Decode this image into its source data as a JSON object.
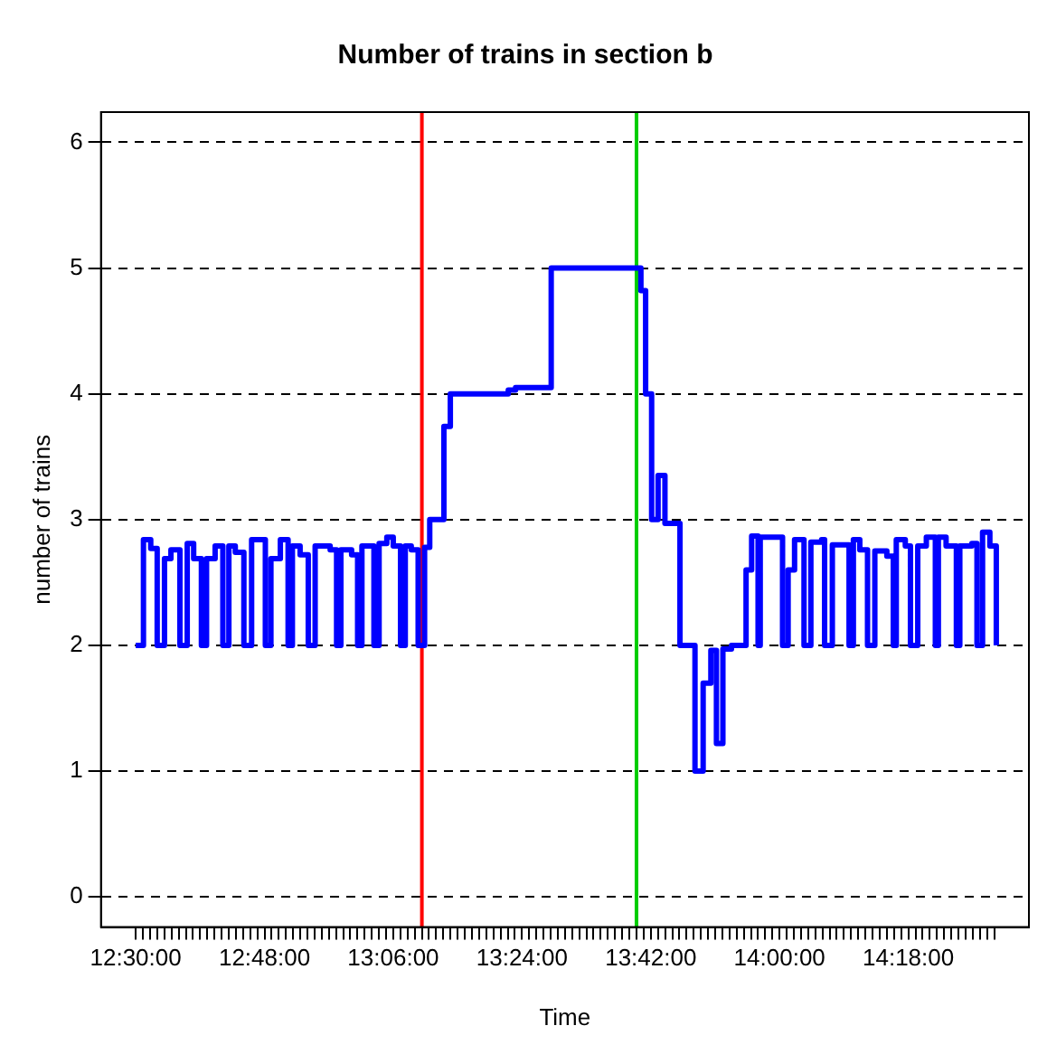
{
  "chart_data": {
    "type": "step",
    "title": "Number of trains in section b",
    "xlabel": "Time",
    "ylabel": "number of trains",
    "xlim": [
      12.419,
      14.581
    ],
    "ylim": [
      -0.24,
      6.24
    ],
    "yticks": [
      0,
      1,
      2,
      3,
      4,
      5,
      6
    ],
    "xticks": [
      {
        "value": 12.5,
        "label": "12:30:00"
      },
      {
        "value": 12.5167,
        "label": null
      },
      {
        "value": 12.5333,
        "label": null
      },
      {
        "value": 12.55,
        "label": null
      },
      {
        "value": 12.5667,
        "label": null
      },
      {
        "value": 12.5833,
        "label": null
      },
      {
        "value": 12.6,
        "label": null
      },
      {
        "value": 12.6167,
        "label": null
      },
      {
        "value": 12.6333,
        "label": null
      },
      {
        "value": 12.65,
        "label": null
      },
      {
        "value": 12.6667,
        "label": null
      },
      {
        "value": 12.6833,
        "label": null
      },
      {
        "value": 12.7,
        "label": null
      },
      {
        "value": 12.7167,
        "label": null
      },
      {
        "value": 12.7333,
        "label": null
      },
      {
        "value": 12.75,
        "label": null
      },
      {
        "value": 12.7667,
        "label": null
      },
      {
        "value": 12.7833,
        "label": null
      },
      {
        "value": 12.8,
        "label": "12:48:00"
      },
      {
        "value": 12.8167,
        "label": null
      },
      {
        "value": 12.8333,
        "label": null
      },
      {
        "value": 12.85,
        "label": null
      },
      {
        "value": 12.8667,
        "label": null
      },
      {
        "value": 12.8833,
        "label": null
      },
      {
        "value": 12.9,
        "label": null
      },
      {
        "value": 12.9167,
        "label": null
      },
      {
        "value": 12.9333,
        "label": null
      },
      {
        "value": 12.95,
        "label": null
      },
      {
        "value": 12.9667,
        "label": null
      },
      {
        "value": 12.9833,
        "label": null
      },
      {
        "value": 13,
        "label": null
      },
      {
        "value": 13.0167,
        "label": null
      },
      {
        "value": 13.0333,
        "label": null
      },
      {
        "value": 13.05,
        "label": null
      },
      {
        "value": 13.0667,
        "label": null
      },
      {
        "value": 13.0833,
        "label": null
      },
      {
        "value": 13.1,
        "label": "13:06:00"
      },
      {
        "value": 13.1167,
        "label": null
      },
      {
        "value": 13.1333,
        "label": null
      },
      {
        "value": 13.15,
        "label": null
      },
      {
        "value": 13.1667,
        "label": null
      },
      {
        "value": 13.1833,
        "label": null
      },
      {
        "value": 13.2,
        "label": null
      },
      {
        "value": 13.2167,
        "label": null
      },
      {
        "value": 13.2333,
        "label": null
      },
      {
        "value": 13.25,
        "label": null
      },
      {
        "value": 13.2667,
        "label": null
      },
      {
        "value": 13.2833,
        "label": null
      },
      {
        "value": 13.3,
        "label": null
      },
      {
        "value": 13.3167,
        "label": null
      },
      {
        "value": 13.3333,
        "label": null
      },
      {
        "value": 13.35,
        "label": null
      },
      {
        "value": 13.3667,
        "label": null
      },
      {
        "value": 13.3833,
        "label": null
      },
      {
        "value": 13.4,
        "label": "13:24:00"
      },
      {
        "value": 13.4167,
        "label": null
      },
      {
        "value": 13.4333,
        "label": null
      },
      {
        "value": 13.45,
        "label": null
      },
      {
        "value": 13.4667,
        "label": null
      },
      {
        "value": 13.4833,
        "label": null
      },
      {
        "value": 13.5,
        "label": null
      },
      {
        "value": 13.5167,
        "label": null
      },
      {
        "value": 13.5333,
        "label": null
      },
      {
        "value": 13.55,
        "label": null
      },
      {
        "value": 13.5667,
        "label": null
      },
      {
        "value": 13.5833,
        "label": null
      },
      {
        "value": 13.6,
        "label": null
      },
      {
        "value": 13.6167,
        "label": null
      },
      {
        "value": 13.6333,
        "label": null
      },
      {
        "value": 13.65,
        "label": null
      },
      {
        "value": 13.6667,
        "label": null
      },
      {
        "value": 13.6833,
        "label": null
      },
      {
        "value": 13.7,
        "label": "13:42:00"
      },
      {
        "value": 13.7167,
        "label": null
      },
      {
        "value": 13.7333,
        "label": null
      },
      {
        "value": 13.75,
        "label": null
      },
      {
        "value": 13.7667,
        "label": null
      },
      {
        "value": 13.7833,
        "label": null
      },
      {
        "value": 13.8,
        "label": null
      },
      {
        "value": 13.8167,
        "label": null
      },
      {
        "value": 13.8333,
        "label": null
      },
      {
        "value": 13.85,
        "label": null
      },
      {
        "value": 13.8667,
        "label": null
      },
      {
        "value": 13.8833,
        "label": null
      },
      {
        "value": 13.9,
        "label": null
      },
      {
        "value": 13.9167,
        "label": null
      },
      {
        "value": 13.9333,
        "label": null
      },
      {
        "value": 13.95,
        "label": null
      },
      {
        "value": 13.9667,
        "label": null
      },
      {
        "value": 13.9833,
        "label": null
      },
      {
        "value": 14,
        "label": "14:00:00"
      },
      {
        "value": 14.0167,
        "label": null
      },
      {
        "value": 14.0333,
        "label": null
      },
      {
        "value": 14.05,
        "label": null
      },
      {
        "value": 14.0667,
        "label": null
      },
      {
        "value": 14.0833,
        "label": null
      },
      {
        "value": 14.1,
        "label": null
      },
      {
        "value": 14.1167,
        "label": null
      },
      {
        "value": 14.1333,
        "label": null
      },
      {
        "value": 14.15,
        "label": null
      },
      {
        "value": 14.1667,
        "label": null
      },
      {
        "value": 14.1833,
        "label": null
      },
      {
        "value": 14.2,
        "label": null
      },
      {
        "value": 14.2167,
        "label": null
      },
      {
        "value": 14.2333,
        "label": null
      },
      {
        "value": 14.25,
        "label": null
      },
      {
        "value": 14.2667,
        "label": null
      },
      {
        "value": 14.2833,
        "label": null
      },
      {
        "value": 14.3,
        "label": "14:18:00"
      },
      {
        "value": 14.3167,
        "label": null
      },
      {
        "value": 14.3333,
        "label": null
      },
      {
        "value": 14.35,
        "label": null
      },
      {
        "value": 14.3667,
        "label": null
      },
      {
        "value": 14.3833,
        "label": null
      },
      {
        "value": 14.4,
        "label": null
      },
      {
        "value": 14.4167,
        "label": null
      },
      {
        "value": 14.4333,
        "label": null
      },
      {
        "value": 14.45,
        "label": null
      },
      {
        "value": 14.4667,
        "label": null
      },
      {
        "value": 14.4833,
        "label": null
      },
      {
        "value": 14.5,
        "label": null
      }
    ],
    "grid": "y",
    "ref_lines": [
      {
        "axis": "x",
        "value": 13.1667,
        "color": "#ff0000"
      },
      {
        "axis": "x",
        "value": 13.6667,
        "color": "#00cd00"
      }
    ],
    "series": [
      {
        "color": "#0000ff",
        "x": [
          12.5,
          12.518,
          12.535,
          12.55,
          12.567,
          12.582,
          12.603,
          12.62,
          12.635,
          12.653,
          12.665,
          12.685,
          12.703,
          12.717,
          12.732,
          12.752,
          12.77,
          12.802,
          12.815,
          12.837,
          12.855,
          12.865,
          12.883,
          12.902,
          12.918,
          12.953,
          12.968,
          12.978,
          13.003,
          13.017,
          13.027,
          13.055,
          13.067,
          13.085,
          13.1,
          13.117,
          13.128,
          13.142,
          13.158,
          13.173,
          13.185,
          13.218,
          13.233,
          13.368,
          13.385,
          13.468,
          13.677,
          13.688,
          13.702,
          13.717,
          13.733,
          13.768,
          13.803,
          13.822,
          13.84,
          13.853,
          13.868,
          13.888,
          13.922,
          13.935,
          13.95,
          13.955,
          14.007,
          14.02,
          14.035,
          14.057,
          14.073,
          14.098,
          14.105,
          14.123,
          14.162,
          14.172,
          14.187,
          14.205,
          14.222,
          14.25,
          14.265,
          14.272,
          14.293,
          14.305,
          14.322,
          14.342,
          14.363,
          14.37,
          14.388,
          14.412,
          14.42,
          14.448,
          14.46,
          14.473,
          14.49,
          14.505
        ],
        "values": [
          2,
          2.84,
          2.77,
          2,
          2.69,
          2.76,
          2,
          2.81,
          2.69,
          2,
          2.69,
          2.79,
          2,
          2.79,
          2.74,
          2,
          2.84,
          2,
          2.69,
          2.84,
          2,
          2.79,
          2.72,
          2,
          2.79,
          2.76,
          2,
          2.76,
          2.72,
          2,
          2.79,
          2,
          2.81,
          2.86,
          2.79,
          2,
          2.79,
          2.76,
          2,
          2.78,
          3,
          3.74,
          4,
          4.03,
          4.05,
          5,
          4.82,
          4,
          3,
          3.35,
          2.97,
          2,
          1,
          1.7,
          1.96,
          1.22,
          1.97,
          2,
          2.6,
          2.87,
          2,
          2.86,
          2,
          2.6,
          2.84,
          2,
          2.82,
          2.84,
          2,
          2.8,
          2,
          2.84,
          2.76,
          2,
          2.75,
          2.71,
          2,
          2.84,
          2.79,
          2,
          2.79,
          2.86,
          2,
          2.86,
          2.79,
          2,
          2.79,
          2.81,
          2,
          2.9,
          2.79,
          2
        ]
      }
    ]
  }
}
